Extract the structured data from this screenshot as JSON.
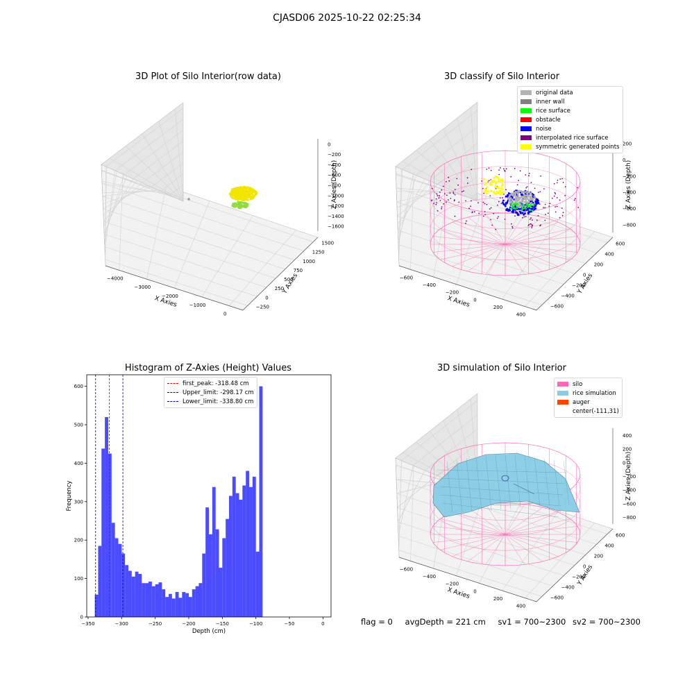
{
  "suptitle": "CJASD06 2025-10-22 02:25:34",
  "status": {
    "flag": "flag = 0",
    "avg_depth": "avgDepth = 221 cm",
    "sv1": "sv1 = 700~2300",
    "sv2": "sv2 = 700~2300"
  },
  "chart_data": [
    {
      "type": "scatter",
      "title": "3D Plot of Silo Interior(row data)",
      "xlabel": "X Axies",
      "ylabel": "Y Axies",
      "zlabel": "Z Axies (Depth)",
      "x_ticks": [
        "−4000",
        "−3000",
        "−2000",
        "−1000",
        "0"
      ],
      "y_ticks": [
        "−250",
        "0",
        "250",
        "500",
        "750",
        "1000",
        "1250",
        "1500"
      ],
      "z_ticks": [
        "0",
        "−200",
        "−400",
        "−600",
        "−800",
        "−1000",
        "−1200",
        "−1400",
        "−1600"
      ],
      "colors": {
        "points_main": "#f2e600",
        "points_low": "#8fdc3a",
        "outlier": "#999999"
      }
    },
    {
      "type": "scatter",
      "title": "3D classify of Silo Interior",
      "xlabel": "X Axies",
      "ylabel": "Y Axies",
      "zlabel": "Z Axies (Depth)",
      "x_ticks": [
        "−600",
        "−400",
        "−200",
        "0",
        "200",
        "400"
      ],
      "y_ticks": [
        "−600",
        "−400",
        "−200",
        "0",
        "200",
        "400",
        "600"
      ],
      "z_ticks": [
        "200",
        "0",
        "−200",
        "−400",
        "−600",
        "−800"
      ],
      "z_top_partial": "0",
      "legend": [
        {
          "label": "original data",
          "color": "#b3b3b3"
        },
        {
          "label": "inner wall",
          "color": "#808080"
        },
        {
          "label": "rice surface",
          "color": "#00ff00"
        },
        {
          "label": "obstacle",
          "color": "#ff0000"
        },
        {
          "label": "noise",
          "color": "#0000ff"
        },
        {
          "label": "interpolated rice surface",
          "color": "#800080"
        },
        {
          "label": "symmetric generated points",
          "color": "#ffff00"
        }
      ],
      "colors": {
        "cylinder": "#ff69b4"
      }
    },
    {
      "type": "bar",
      "title": "Histogram of Z-Axies (Height) Values",
      "xlabel": "Depth (cm)",
      "ylabel": "Frequency",
      "xlim": [
        -352,
        12
      ],
      "ylim": [
        0,
        630
      ],
      "bin_start": -340,
      "bin_width": 5,
      "values": [
        58,
        185,
        438,
        520,
        425,
        245,
        205,
        190,
        165,
        135,
        120,
        105,
        118,
        112,
        88,
        88,
        92,
        80,
        85,
        90,
        72,
        52,
        60,
        48,
        65,
        50,
        65,
        62,
        52,
        72,
        80,
        88,
        165,
        285,
        215,
        338,
        228,
        128,
        205,
        255,
        315,
        365,
        322,
        305,
        342,
        380,
        338,
        365,
        170,
        600
      ],
      "x_ticks": [
        -350,
        -300,
        -250,
        -200,
        -150,
        -100,
        -50,
        0
      ],
      "y_ticks": [
        0,
        100,
        200,
        300,
        400,
        500,
        600
      ],
      "bar_color": "#4b4bff",
      "vlines": [
        {
          "label": "first_peak: -318.48 cm",
          "x": -318.48,
          "color": "#e00000"
        },
        {
          "label": "Upper_limit: -298.17 cm",
          "x": -298.17,
          "color": "#000090"
        },
        {
          "label": "Lower_limit: -338.80 cm",
          "x": -338.8,
          "color": "#000090"
        }
      ],
      "legend_position": "top-center"
    },
    {
      "type": "area",
      "title": "3D simulation of Silo Interior",
      "xlabel": "X Axies",
      "ylabel": "Y Axies",
      "zlabel": "Z Axies (Depth)",
      "x_ticks": [
        "−600",
        "−400",
        "−200",
        "0",
        "200",
        "400"
      ],
      "y_ticks": [
        "−600",
        "−400",
        "−200",
        "0",
        "200",
        "400",
        "600"
      ],
      "z_ticks": [
        "400",
        "200",
        "0",
        "−200",
        "−400",
        "−600",
        "−800"
      ],
      "legend": [
        {
          "label": "silo",
          "color": "#ff69b4"
        },
        {
          "label": "rice simulation",
          "color": "#87cde6"
        },
        {
          "label": "auger",
          "color": "#ff4500"
        },
        {
          "label": "center(-111,31)",
          "color": "#ffffff"
        }
      ]
    }
  ]
}
